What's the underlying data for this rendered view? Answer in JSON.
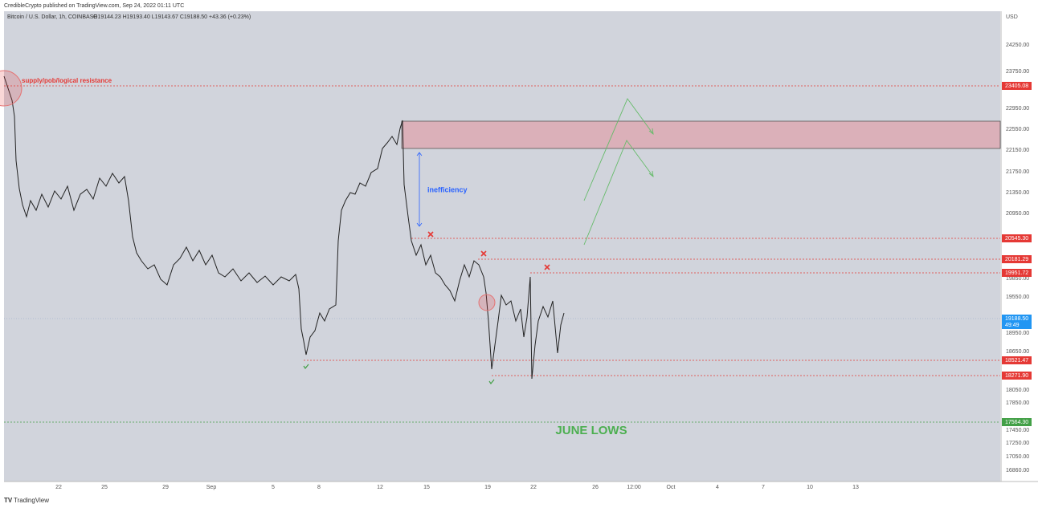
{
  "header": {
    "publisher": "CredibleCrypto published on TradingView.com, Sep 24, 2022 01:11 UTC",
    "symbol": "Bitcoin / U.S. Dollar, 1h, COINBASE",
    "ohlc": "O19144.23 H19193.40 L19143.67 C19188.50 +43.36 (+0.23%)"
  },
  "price_axis": {
    "unit": "USD",
    "labels": [
      "24250.00",
      "23750.00",
      "22950.00",
      "22550.00",
      "22150.00",
      "21750.00",
      "21350.00",
      "20950.00",
      "19850.00",
      "19550.00",
      "18950.00",
      "18650.00",
      "18050.00",
      "17850.00",
      "17450.00",
      "17250.00",
      "17050.00",
      "16860.00"
    ],
    "levels": [
      "23405.08",
      "20545.30",
      "20181.29",
      "19951.72",
      "18521.47",
      "18271.90",
      "17564.30"
    ],
    "last_price": "19188.50",
    "countdown": "49:49"
  },
  "date_axis": [
    "22",
    "25",
    "29",
    "Sep",
    "5",
    "8",
    "12",
    "15",
    "19",
    "22",
    "26",
    "12:00",
    "Oct",
    "4",
    "7",
    "10",
    "13"
  ],
  "annotations": {
    "resistance": "supply/pob/logical resistance",
    "gap": "inefficiency",
    "lows": "JUNE LOWS"
  },
  "footer": "TradingView"
}
